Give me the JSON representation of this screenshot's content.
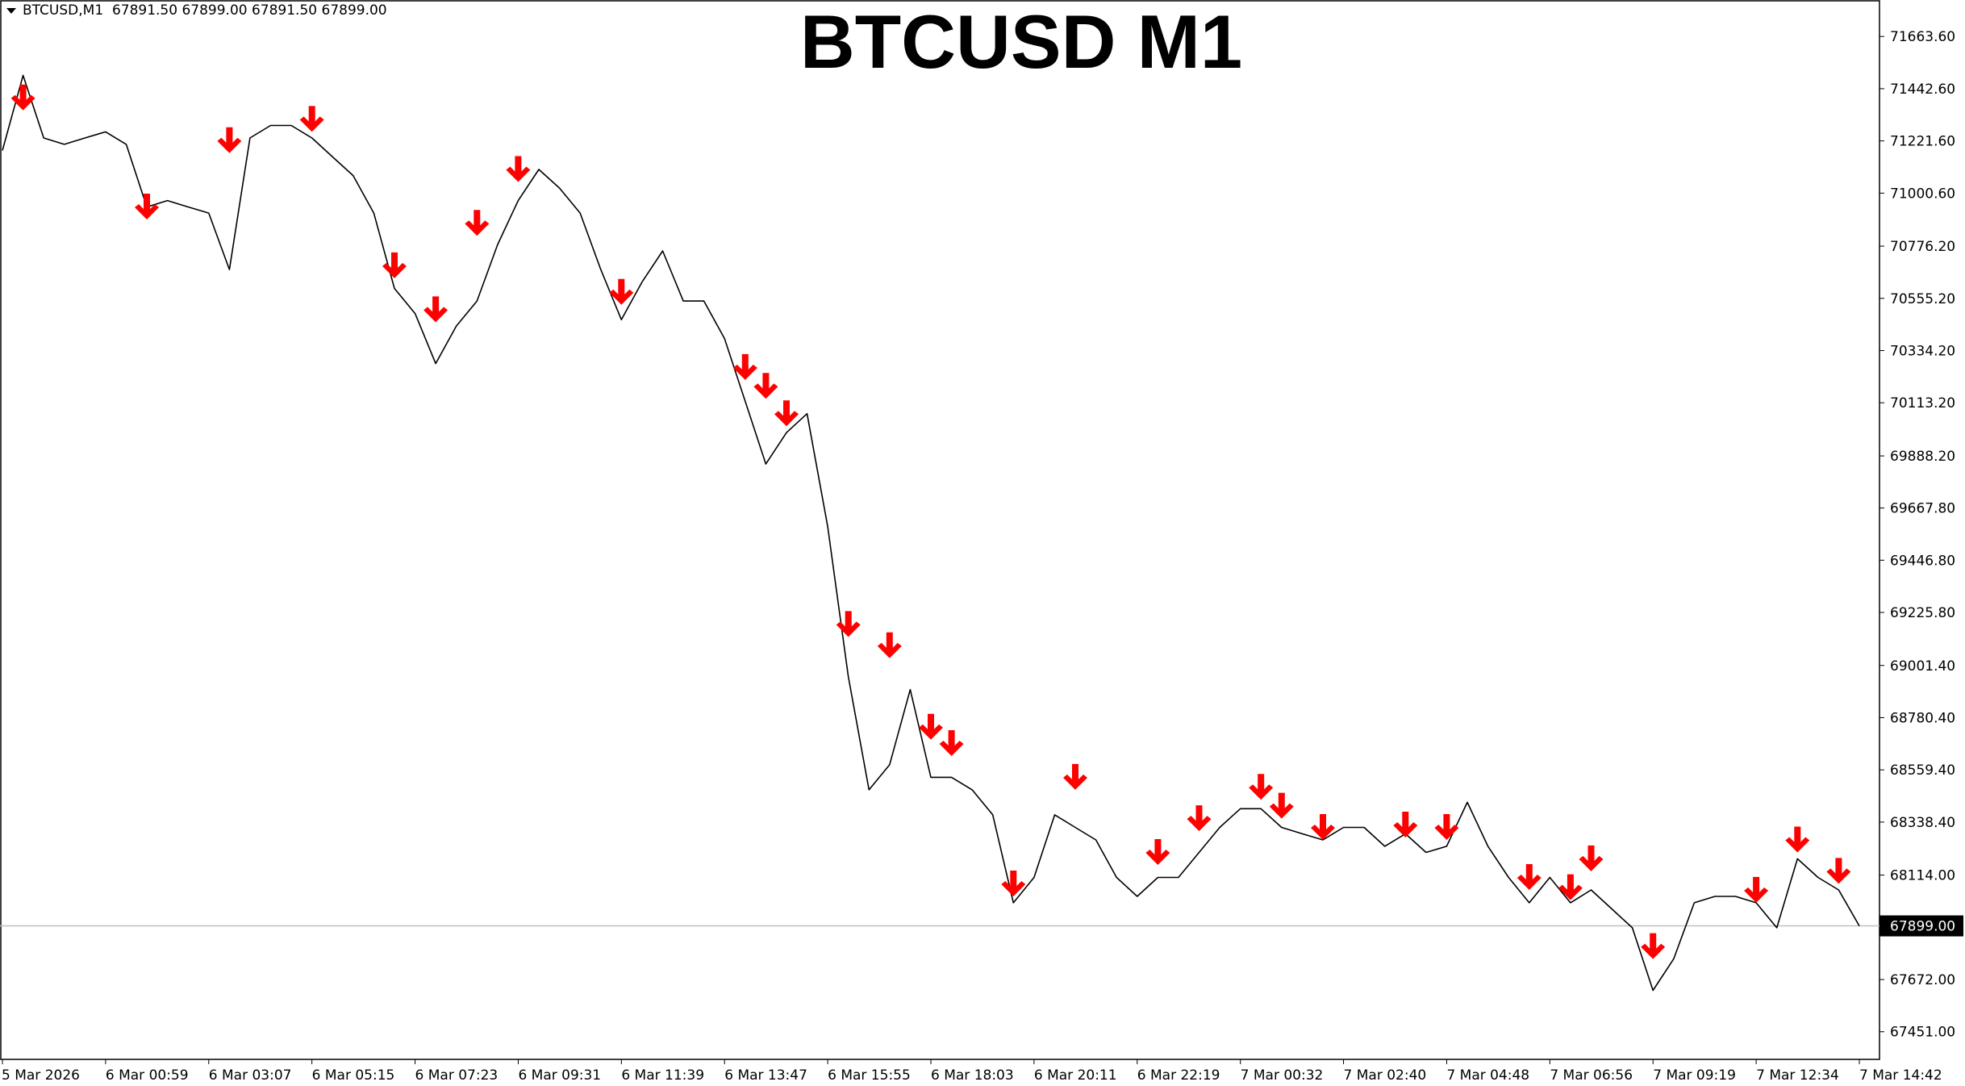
{
  "chart_data": {
    "type": "line",
    "header": "BTCUSD,M1  67891.50 67899.00 67891.50 67899.00",
    "title": "BTCUSD M1",
    "categories": [
      "5 Mar 2026",
      null,
      null,
      null,
      null,
      "6 Mar 00:59",
      null,
      null,
      null,
      null,
      "6 Mar 03:07",
      null,
      null,
      null,
      null,
      "6 Mar 05:15",
      null,
      null,
      null,
      null,
      "6 Mar 07:23",
      null,
      null,
      null,
      null,
      "6 Mar 09:31",
      null,
      null,
      null,
      null,
      "6 Mar 11:39",
      null,
      null,
      null,
      null,
      "6 Mar 13:47",
      null,
      null,
      null,
      null,
      "6 Mar 15:55",
      null,
      null,
      null,
      null,
      "6 Mar 18:03",
      null,
      null,
      null,
      null,
      "6 Mar 20:11",
      null,
      null,
      null,
      null,
      "6 Mar 22:19",
      null,
      null,
      null,
      null,
      "7 Mar 00:32",
      null,
      null,
      null,
      null,
      "7 Mar 02:40",
      null,
      null,
      null,
      null,
      "7 Mar 04:48",
      null,
      null,
      null,
      null,
      "7 Mar 06:56",
      null,
      null,
      null,
      null,
      "7 Mar 09:19",
      null,
      null,
      null,
      null,
      "7 Mar 12:34",
      null,
      null,
      null,
      null,
      "7 Mar 14:42"
    ],
    "series": [
      {
        "color": "#000000",
        "values": [
          71181,
          71499,
          71234,
          71207,
          71234,
          71260,
          71207,
          70942,
          70969,
          70942,
          70916,
          70677,
          71234,
          71287,
          71287,
          71234,
          71154,
          71075,
          70916,
          70597,
          70491,
          70279,
          70438,
          70544,
          70783,
          70969,
          71101,
          71022,
          70916,
          70677,
          70465,
          70624,
          70756,
          70544,
          70544,
          70385,
          70120,
          69854,
          69987,
          70067,
          69589,
          68953,
          68475,
          68581,
          68899,
          68528,
          68528,
          68475,
          68369,
          67997,
          68104,
          68369,
          68316,
          68263,
          68104,
          68024,
          68104,
          68104,
          68210,
          68316,
          68395,
          68395,
          68316,
          68289,
          68263,
          68316,
          68316,
          68236,
          68289,
          68210,
          68236,
          68422,
          68236,
          68104,
          67997,
          68104,
          67997,
          68051,
          67971,
          67891,
          67626,
          67759,
          67997,
          68024,
          68024,
          67997,
          67891,
          68183,
          68104,
          68051,
          67899
        ]
      },
      {
        "color": "#ff0000",
        "marker": "arrow-down",
        "values": [
          null,
          71351,
          null,
          null,
          null,
          null,
          null,
          70889,
          null,
          null,
          null,
          71170,
          null,
          null,
          null,
          71260,
          null,
          null,
          null,
          70640,
          null,
          70454,
          null,
          70820,
          null,
          71048,
          null,
          null,
          null,
          null,
          70528,
          null,
          null,
          null,
          null,
          null,
          70210,
          70130,
          70014,
          null,
          null,
          69122,
          null,
          69032,
          null,
          68687,
          68618,
          null,
          null,
          68024,
          null,
          null,
          68475,
          null,
          null,
          null,
          68157,
          null,
          68300,
          null,
          null,
          68433,
          68353,
          null,
          68263,
          null,
          null,
          null,
          68273,
          null,
          68263,
          null,
          null,
          null,
          68051,
          null,
          68008,
          68130,
          null,
          null,
          67759,
          null,
          null,
          null,
          null,
          67997,
          null,
          68210,
          null,
          68077,
          null
        ]
      }
    ],
    "ylim": [
      67334,
      71818
    ],
    "yticks": [
      {
        "value": 71663.6,
        "label": "71663.60"
      },
      {
        "value": 71442.6,
        "label": "71442.60"
      },
      {
        "value": 71221.6,
        "label": "71221.60"
      },
      {
        "value": 71000.6,
        "label": "71000.60"
      },
      {
        "value": 70776.2,
        "label": "70776.20"
      },
      {
        "value": 70555.2,
        "label": "70555.20"
      },
      {
        "value": 70334.2,
        "label": "70334.20"
      },
      {
        "value": 70113.2,
        "label": "70113.20"
      },
      {
        "value": 69888.2,
        "label": "69888.20"
      },
      {
        "value": 69667.8,
        "label": "69667.80"
      },
      {
        "value": 69446.8,
        "label": "69446.80"
      },
      {
        "value": 69225.8,
        "label": "69225.80"
      },
      {
        "value": 69001.4,
        "label": "69001.40"
      },
      {
        "value": 68780.4,
        "label": "68780.40"
      },
      {
        "value": 68559.4,
        "label": "68559.40"
      },
      {
        "value": 68338.4,
        "label": "68338.40"
      },
      {
        "value": 68114,
        "label": "68114.00"
      },
      {
        "value": 67672,
        "label": "67672.00"
      },
      {
        "value": 67451,
        "label": "67451.00"
      }
    ],
    "current_price": {
      "value": 67899,
      "label": "67899.00"
    },
    "grid": false
  }
}
